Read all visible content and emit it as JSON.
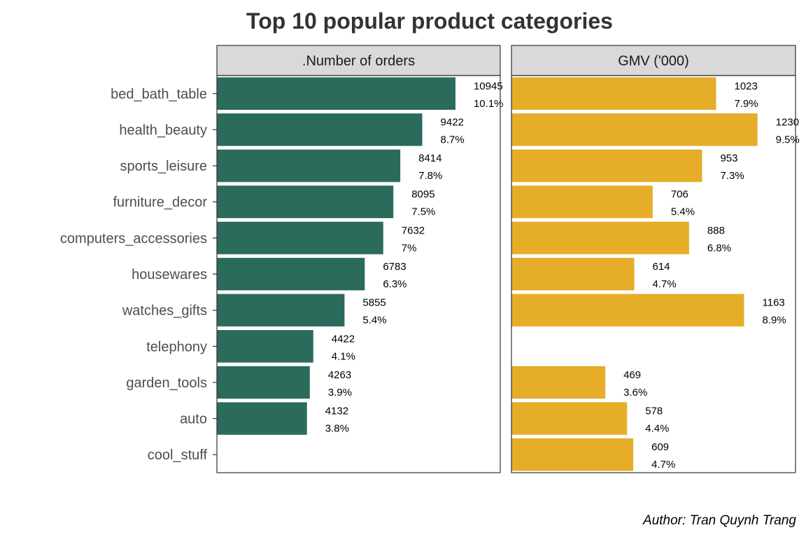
{
  "chart_data": {
    "type": "bar",
    "orientation": "horizontal",
    "title": "Top 10 popular product categories",
    "caption": "Author: Tran Quynh Trang",
    "categories": [
      "bed_bath_table",
      "health_beauty",
      "sports_leisure",
      "furniture_decor",
      "computers_accessories",
      "housewares",
      "watches_gifts",
      "telephony",
      "garden_tools",
      "auto",
      "cool_stuff"
    ],
    "series": [
      {
        "name": ".Number of orders",
        "color": "#2a6b5c",
        "values": [
          10945,
          9422,
          8414,
          8095,
          7632,
          6783,
          5855,
          4422,
          4263,
          4132,
          null
        ],
        "value_labels": [
          "10945",
          "9422",
          "8414",
          "8095",
          "7632",
          "6783",
          "5855",
          "4422",
          "4263",
          "4132",
          ""
        ],
        "pct_labels": [
          "10.1%",
          "8.7%",
          "7.8%",
          "7.5%",
          "7%",
          "6.3%",
          "5.4%",
          "4.1%",
          "3.9%",
          "3.8%",
          ""
        ],
        "xlim": [
          0,
          13000
        ]
      },
      {
        "name": "GMV ('000)",
        "color": "#e5ad28",
        "values": [
          1023,
          1230,
          953,
          706,
          888,
          614,
          1163,
          null,
          469,
          578,
          609
        ],
        "value_labels": [
          "1023",
          "1230",
          "953",
          "706",
          "888",
          "614",
          "1163",
          "",
          "469",
          "578",
          "609"
        ],
        "pct_labels": [
          "7.9%",
          "9.5%",
          "7.3%",
          "5.4%",
          "6.8%",
          "4.7%",
          "8.9%",
          "",
          "3.6%",
          "4.4%",
          "4.7%"
        ],
        "xlim": [
          0,
          1420
        ]
      }
    ],
    "grid": false,
    "legend": "none"
  }
}
